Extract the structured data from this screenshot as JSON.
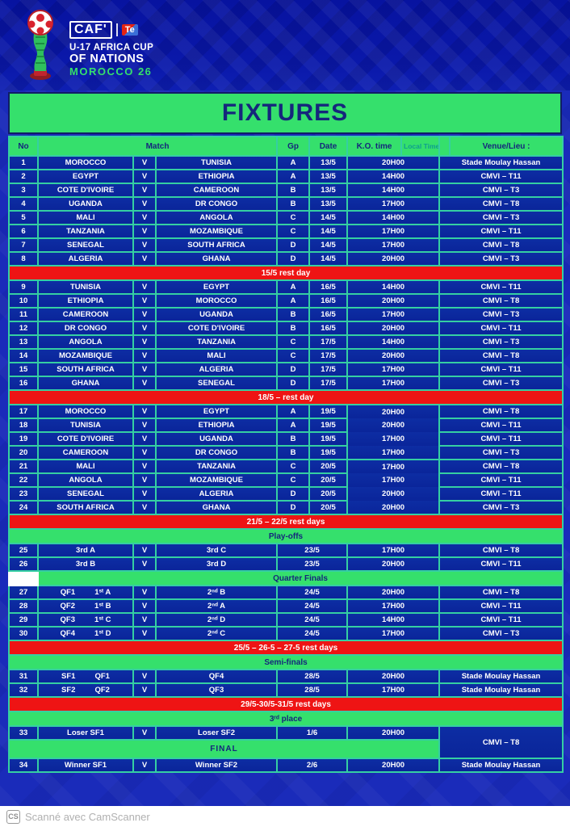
{
  "colors": {
    "background_blue": "#1a2bba",
    "banner_green": "#35e06c",
    "rest_red": "#ee1414",
    "row_navy": "#0d2da3",
    "grid_teal": "#35cfa2",
    "text_navy": "#15267c"
  },
  "logo": {
    "caf": "CAF'",
    "sponsor": "Te",
    "line1": "U-17 AFRICA CUP",
    "line2": "OF NATIONS",
    "line3": "MOROCCO 26"
  },
  "title": "FIXTURES",
  "table": {
    "v_label": "V",
    "columns": {
      "no": "No",
      "match": "Match",
      "gp": "Gp",
      "date": "Date",
      "ko": "K.O. time",
      "local": "Local Time",
      "venue": "Venue/Lieu :"
    },
    "rows": [
      {
        "type": "match",
        "no": "1",
        "home": "MOROCCO",
        "away": "TUNISIA",
        "gp": "A",
        "date": "13/5",
        "time": "20H00",
        "venue": "Stade Moulay Hassan"
      },
      {
        "type": "match",
        "no": "2",
        "home": "EGYPT",
        "away": "ETHIOPIA",
        "gp": "A",
        "date": "13/5",
        "time": "14H00",
        "venue": "CMVI – T11"
      },
      {
        "type": "match",
        "no": "3",
        "home": "COTE D'IVOIRE",
        "away": "CAMEROON",
        "gp": "B",
        "date": "13/5",
        "time": "14H00",
        "venue": "CMVI – T3"
      },
      {
        "type": "match",
        "no": "4",
        "home": "UGANDA",
        "away": "DR CONGO",
        "gp": "B",
        "date": "13/5",
        "time": "17H00",
        "venue": "CMVI – T8"
      },
      {
        "type": "match",
        "no": "5",
        "home": "MALI",
        "away": "ANGOLA",
        "gp": "C",
        "date": "14/5",
        "time": "14H00",
        "venue": "CMVI – T3"
      },
      {
        "type": "match",
        "no": "6",
        "home": "TANZANIA",
        "away": "MOZAMBIQUE",
        "gp": "C",
        "date": "14/5",
        "time": "17H00",
        "venue": "CMVI – T11"
      },
      {
        "type": "match",
        "no": "7",
        "home": "SENEGAL",
        "away": "SOUTH AFRICA",
        "gp": "D",
        "date": "14/5",
        "time": "17H00",
        "venue": "CMVI – T8"
      },
      {
        "type": "match",
        "no": "8",
        "home": "ALGERIA",
        "away": "GHANA",
        "gp": "D",
        "date": "14/5",
        "time": "20H00",
        "venue": "CMVI – T3"
      },
      {
        "type": "rest",
        "label": "15/5 rest day"
      },
      {
        "type": "match",
        "no": "9",
        "home": "TUNISIA",
        "away": "EGYPT",
        "gp": "A",
        "date": "16/5",
        "time": "14H00",
        "venue": "CMVI – T11"
      },
      {
        "type": "match",
        "no": "10",
        "home": "ETHIOPIA",
        "away": "MOROCCO",
        "gp": "A",
        "date": "16/5",
        "time": "20H00",
        "venue": "CMVI – T8"
      },
      {
        "type": "match",
        "no": "11",
        "home": "CAMEROON",
        "away": "UGANDA",
        "gp": "B",
        "date": "16/5",
        "time": "17H00",
        "venue": "CMVI – T3"
      },
      {
        "type": "match",
        "no": "12",
        "home": "DR CONGO",
        "away": "COTE D'IVOIRE",
        "gp": "B",
        "date": "16/5",
        "time": "20H00",
        "venue": "CMVI – T11"
      },
      {
        "type": "match",
        "no": "13",
        "home": "ANGOLA",
        "away": "TANZANIA",
        "gp": "C",
        "date": "17/5",
        "time": "14H00",
        "venue": "CMVI – T3"
      },
      {
        "type": "match",
        "no": "14",
        "home": "MOZAMBIQUE",
        "away": "MALI",
        "gp": "C",
        "date": "17/5",
        "time": "20H00",
        "venue": "CMVI – T8"
      },
      {
        "type": "match",
        "no": "15",
        "home": "SOUTH AFRICA",
        "away": "ALGERIA",
        "gp": "D",
        "date": "17/5",
        "time": "17H00",
        "venue": "CMVI – T11"
      },
      {
        "type": "match",
        "no": "16",
        "home": "GHANA",
        "away": "SENEGAL",
        "gp": "D",
        "date": "17/5",
        "time": "17H00",
        "venue": "CMVI – T3"
      },
      {
        "type": "rest",
        "label": "18/5 – rest day"
      },
      {
        "type": "match",
        "no": "17",
        "home": "MOROCCO",
        "away": "EGYPT",
        "gp": "A",
        "date": "19/5",
        "time": "20H00",
        "venue": "CMVI – T8",
        "tmerge": "first"
      },
      {
        "type": "match",
        "no": "18",
        "home": "TUNISIA",
        "away": "ETHIOPIA",
        "gp": "A",
        "date": "19/5",
        "time": "20H00",
        "venue": "CMVI – T11",
        "tmerge": "mid"
      },
      {
        "type": "match",
        "no": "19",
        "home": "COTE D'IVOIRE",
        "away": "UGANDA",
        "gp": "B",
        "date": "19/5",
        "time": "17H00",
        "venue": "CMVI – T11",
        "tmerge": "mid"
      },
      {
        "type": "match",
        "no": "20",
        "home": "CAMEROON",
        "away": "DR CONGO",
        "gp": "B",
        "date": "19/5",
        "time": "17H00",
        "venue": "CMVI – T3",
        "tmerge": "last"
      },
      {
        "type": "match",
        "no": "21",
        "home": "MALI",
        "away": "TANZANIA",
        "gp": "C",
        "date": "20/5",
        "time": "17H00",
        "venue": "CMVI – T8",
        "tmerge": "first"
      },
      {
        "type": "match",
        "no": "22",
        "home": "ANGOLA",
        "away": "MOZAMBIQUE",
        "gp": "C",
        "date": "20/5",
        "time": "17H00",
        "venue": "CMVI – T11",
        "tmerge": "mid"
      },
      {
        "type": "match",
        "no": "23",
        "home": "SENEGAL",
        "away": "ALGERIA",
        "gp": "D",
        "date": "20/5",
        "time": "20H00",
        "venue": "CMVI – T11",
        "tmerge": "mid"
      },
      {
        "type": "match",
        "no": "24",
        "home": "SOUTH AFRICA",
        "away": "GHANA",
        "gp": "D",
        "date": "20/5",
        "time": "20H00",
        "venue": "CMVI – T3",
        "tmerge": "last"
      },
      {
        "type": "rest",
        "label": "21/5 – 22/5 rest days"
      },
      {
        "type": "stage",
        "label": "Play-offs"
      },
      {
        "type": "match",
        "layout": "knockout",
        "no": "25",
        "home": "3rd A",
        "away": "3rd C",
        "date": "23/5",
        "time": "17H00",
        "venue": "CMVI – T8"
      },
      {
        "type": "match",
        "layout": "knockout",
        "no": "26",
        "home": "3rd B",
        "away": "3rd D",
        "date": "23/5",
        "time": "20H00",
        "venue": "CMVI – T11"
      },
      {
        "type": "stage",
        "label": "Quarter Finals",
        "white_no": true
      },
      {
        "type": "match",
        "layout": "knockout",
        "no": "27",
        "code": "QF1",
        "home": "1ˢᵗ A",
        "away": "2ⁿᵈ B",
        "date": "24/5",
        "time": "20H00",
        "venue": "CMVI – T8"
      },
      {
        "type": "match",
        "layout": "knockout",
        "no": "28",
        "code": "QF2",
        "home": "1ˢᵗ B",
        "away": "2ⁿᵈ A",
        "date": "24/5",
        "time": "17H00",
        "venue": "CMVI – T11"
      },
      {
        "type": "match",
        "layout": "knockout",
        "no": "29",
        "code": "QF3",
        "home": "1ˢᵗ C",
        "away": "2ⁿᵈ D",
        "date": "24/5",
        "time": "14H00",
        "venue": "CMVI – T11"
      },
      {
        "type": "match",
        "layout": "knockout",
        "no": "30",
        "code": "QF4",
        "home": "1ˢᵗ D",
        "away": "2ⁿᵈ C",
        "date": "24/5",
        "time": "17H00",
        "venue": "CMVI – T3"
      },
      {
        "type": "rest",
        "label": "25/5 – 26-5 – 27-5 rest days"
      },
      {
        "type": "stage",
        "label": "Semi-finals"
      },
      {
        "type": "match",
        "layout": "knockout",
        "no": "31",
        "code": "SF1",
        "home": "QF1",
        "away": "QF4",
        "date": "28/5",
        "time": "20H00",
        "venue": "Stade Moulay Hassan"
      },
      {
        "type": "match",
        "layout": "knockout",
        "no": "32",
        "code": "SF2",
        "home": "QF2",
        "away": "QF3",
        "date": "28/5",
        "time": "17H00",
        "venue": "Stade Moulay Hassan"
      },
      {
        "type": "rest",
        "label": "29/5-30/5-31/5 rest days"
      },
      {
        "type": "stage",
        "label": "3ʳᵈ place"
      },
      {
        "type": "match",
        "layout": "knockout",
        "no": "33",
        "home": "Loser SF1",
        "away": "Loser SF2",
        "date": "1/6",
        "time": "20H00",
        "venue": "CMVI – T8",
        "venue_rowspan": 2
      },
      {
        "type": "final",
        "label": "FINAL"
      },
      {
        "type": "match",
        "layout": "knockout",
        "no": "34",
        "home": "Winner SF1",
        "away": "Winner SF2",
        "date": "2/6",
        "time": "20H00",
        "venue": "Stade Moulay Hassan"
      }
    ]
  },
  "footer": {
    "cs": "CS",
    "scanner": "Scanné avec CamScanner"
  }
}
